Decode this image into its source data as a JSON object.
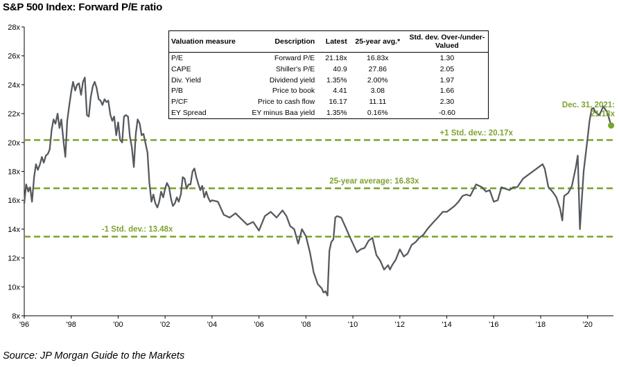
{
  "title": "S&P 500 Index: Forward P/E ratio",
  "source": "Source: JP Morgan Guide to the Markets",
  "colors": {
    "line": "#555a5f",
    "accent": "#7da32f",
    "axis": "#000000"
  },
  "table": {
    "headers": [
      "Valuation measure",
      "Description",
      "Latest",
      "25-year avg.*",
      "Std. dev. Over-/under-Valued"
    ],
    "rows": [
      [
        "P/E",
        "Forward P/E",
        "21.18x",
        "16.83x",
        "1.30"
      ],
      [
        "CAPE",
        "Shiller's P/E",
        "40.9",
        "27.86",
        "2.05"
      ],
      [
        "Div. Yield",
        "Dividend yield",
        "1.35%",
        "2.00%",
        "1.97"
      ],
      [
        "P/B",
        "Price to book",
        "4.41",
        "3.08",
        "1.66"
      ],
      [
        "P/CF",
        "Price to cash flow",
        "16.17",
        "11.11",
        "2.30"
      ],
      [
        "EY Spread",
        "EY minus Baa yield",
        "1.35%",
        "0.16%",
        "-0.60"
      ]
    ]
  },
  "chart_data": {
    "type": "line",
    "title": "S&P 500 Index: Forward P/E ratio",
    "xlabel": "",
    "ylabel": "",
    "xlim": [
      1996,
      2021.1
    ],
    "ylim": [
      8,
      28
    ],
    "x_ticks": [
      {
        "value": 1996,
        "label": "'96"
      },
      {
        "value": 1998,
        "label": "'98"
      },
      {
        "value": 2000,
        "label": "'00"
      },
      {
        "value": 2002,
        "label": "'02"
      },
      {
        "value": 2004,
        "label": "'04"
      },
      {
        "value": 2006,
        "label": "'06"
      },
      {
        "value": 2008,
        "label": "'08"
      },
      {
        "value": 2010,
        "label": "'10"
      },
      {
        "value": 2012,
        "label": "'12"
      },
      {
        "value": 2014,
        "label": "'14"
      },
      {
        "value": 2016,
        "label": "'16"
      },
      {
        "value": 2018,
        "label": "'18"
      },
      {
        "value": 2020,
        "label": "'20"
      }
    ],
    "y_ticks": [
      {
        "value": 8,
        "label": "8x"
      },
      {
        "value": 10,
        "label": "10x"
      },
      {
        "value": 12,
        "label": "12x"
      },
      {
        "value": 14,
        "label": "14x"
      },
      {
        "value": 16,
        "label": "16x"
      },
      {
        "value": 18,
        "label": "18x"
      },
      {
        "value": 20,
        "label": "20x"
      },
      {
        "value": 22,
        "label": "22x"
      },
      {
        "value": 24,
        "label": "24x"
      },
      {
        "value": 26,
        "label": "26x"
      },
      {
        "value": 28,
        "label": "28x"
      }
    ],
    "grid": false,
    "reference_lines": [
      {
        "value": 20.17,
        "label": "+1 Std. dev.: 20.17x",
        "label_x": 2013.7
      },
      {
        "value": 16.83,
        "label": "25-year average: 16.83x",
        "label_x": 2009.0
      },
      {
        "value": 13.48,
        "label": "-1 Std. dev.: 13.48x",
        "label_x": 1999.3
      }
    ],
    "end_point": {
      "x": 2021.0,
      "y": 21.18,
      "label_lines": [
        "Dec. 31, 2021:",
        "21.18x"
      ]
    },
    "series": [
      {
        "x": [
          1996.0,
          1996.08,
          1996.17,
          1996.25,
          1996.33,
          1996.42,
          1996.5,
          1996.58,
          1996.67,
          1996.75,
          1996.83,
          1996.92,
          1997.0,
          1997.08,
          1997.17,
          1997.25,
          1997.33,
          1997.42,
          1997.5,
          1997.58,
          1997.67,
          1997.75,
          1997.83,
          1997.92,
          1998.0,
          1998.08,
          1998.17,
          1998.25,
          1998.33,
          1998.42,
          1998.5,
          1998.58,
          1998.67,
          1998.75,
          1998.83,
          1998.92,
          1999.0,
          1999.08,
          1999.17,
          1999.25,
          1999.33,
          1999.42,
          1999.5,
          1999.58,
          1999.67,
          1999.75,
          1999.83,
          1999.92,
          2000.0,
          2000.08,
          2000.17,
          2000.25,
          2000.33,
          2000.42,
          2000.5,
          2000.58,
          2000.67,
          2000.75,
          2000.83,
          2000.92,
          2001.0,
          2001.08,
          2001.17,
          2001.25,
          2001.33,
          2001.42,
          2001.5,
          2001.58,
          2001.67,
          2001.75,
          2001.83,
          2001.92,
          2002.0,
          2002.08,
          2002.17,
          2002.25,
          2002.33,
          2002.42,
          2002.5,
          2002.58,
          2002.67,
          2002.75,
          2002.83,
          2002.92,
          2003.0,
          2003.08,
          2003.17,
          2003.25,
          2003.33,
          2003.42,
          2003.5,
          2003.58,
          2003.67,
          2003.75,
          2003.83,
          2003.92,
          2004.0,
          2004.25,
          2004.5,
          2004.75,
          2005.0,
          2005.25,
          2005.5,
          2005.75,
          2006.0,
          2006.25,
          2006.5,
          2006.75,
          2007.0,
          2007.17,
          2007.33,
          2007.5,
          2007.67,
          2007.83,
          2008.0,
          2008.17,
          2008.33,
          2008.5,
          2008.67,
          2008.75,
          2008.83,
          2008.92,
          2009.0,
          2009.08,
          2009.17,
          2009.25,
          2009.33,
          2009.5,
          2009.67,
          2009.83,
          2010.0,
          2010.17,
          2010.33,
          2010.5,
          2010.67,
          2010.83,
          2011.0,
          2011.17,
          2011.33,
          2011.5,
          2011.58,
          2011.67,
          2011.83,
          2012.0,
          2012.17,
          2012.33,
          2012.5,
          2012.67,
          2012.83,
          2013.0,
          2013.17,
          2013.33,
          2013.5,
          2013.67,
          2013.83,
          2014.0,
          2014.17,
          2014.33,
          2014.5,
          2014.67,
          2014.83,
          2015.0,
          2015.25,
          2015.5,
          2015.67,
          2015.83,
          2016.0,
          2016.17,
          2016.33,
          2016.5,
          2016.67,
          2016.83,
          2017.0,
          2017.25,
          2017.5,
          2017.75,
          2018.0,
          2018.08,
          2018.17,
          2018.33,
          2018.5,
          2018.67,
          2018.83,
          2018.92,
          2019.0,
          2019.17,
          2019.33,
          2019.42,
          2019.5,
          2019.58,
          2019.67,
          2019.83,
          2020.0,
          2020.08,
          2020.17,
          2020.25,
          2020.33,
          2020.5,
          2020.67,
          2020.83,
          2021.0
        ],
        "values": [
          15.8,
          17.1,
          16.6,
          16.9,
          15.9,
          17.6,
          18.5,
          18.1,
          18.5,
          19.0,
          18.6,
          19.1,
          19.2,
          19.5,
          20.9,
          21.6,
          21.3,
          22.0,
          21.0,
          21.6,
          20.1,
          19.0,
          21.5,
          22.6,
          23.5,
          24.2,
          23.6,
          24.0,
          24.1,
          23.3,
          24.2,
          24.5,
          21.9,
          21.8,
          23.1,
          23.9,
          24.2,
          23.8,
          23.0,
          22.9,
          22.6,
          23.0,
          22.8,
          22.9,
          21.9,
          21.5,
          21.8,
          20.5,
          21.4,
          20.2,
          20.0,
          21.8,
          21.9,
          21.8,
          20.4,
          19.7,
          18.3,
          20.6,
          21.6,
          21.3,
          20.5,
          20.6,
          19.9,
          19.3,
          17.2,
          15.9,
          16.4,
          15.8,
          15.5,
          15.9,
          16.6,
          16.2,
          16.8,
          17.2,
          16.9,
          16.1,
          15.6,
          15.8,
          16.2,
          15.9,
          16.4,
          17.6,
          17.5,
          16.8,
          17.1,
          17.1,
          18.0,
          18.2,
          17.6,
          17.1,
          16.7,
          17.0,
          16.2,
          16.6,
          16.2,
          15.9,
          16.0,
          15.9,
          15.0,
          14.8,
          15.1,
          14.7,
          14.3,
          14.5,
          13.9,
          14.9,
          15.2,
          14.8,
          15.3,
          14.9,
          14.2,
          14.0,
          13.0,
          14.0,
          13.5,
          12.4,
          11.0,
          10.2,
          9.9,
          9.6,
          9.7,
          9.4,
          12.5,
          13.1,
          13.3,
          14.8,
          14.9,
          14.8,
          14.2,
          13.6,
          13.0,
          12.4,
          12.6,
          12.7,
          13.2,
          13.4,
          12.2,
          11.8,
          11.2,
          11.5,
          11.2,
          11.5,
          11.9,
          12.6,
          12.1,
          12.3,
          12.9,
          13.1,
          13.4,
          13.6,
          14.0,
          14.3,
          14.6,
          14.9,
          15.2,
          15.2,
          15.4,
          15.6,
          15.9,
          16.3,
          16.4,
          16.3,
          17.1,
          16.9,
          16.6,
          16.7,
          15.9,
          16.0,
          16.9,
          16.8,
          16.7,
          16.9,
          16.9,
          17.5,
          17.8,
          18.1,
          18.4,
          18.5,
          18.2,
          16.9,
          16.6,
          16.2,
          15.4,
          14.6,
          16.3,
          16.5,
          17.0,
          17.7,
          18.3,
          19.1,
          14.0,
          18.0,
          20.3,
          21.5,
          22.3,
          22.4,
          22.1,
          21.9,
          22.5,
          22.1,
          21.2
        ]
      }
    ]
  }
}
